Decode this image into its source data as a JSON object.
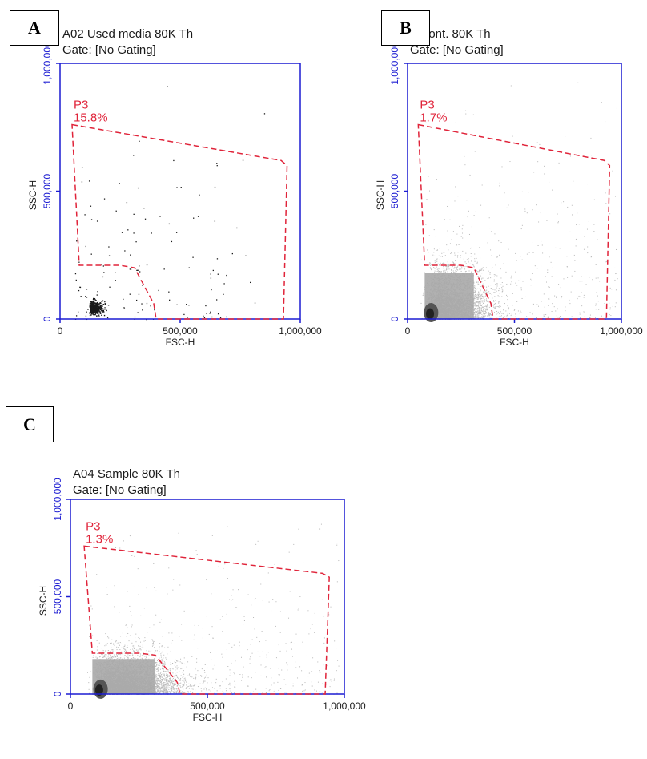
{
  "colors": {
    "axis": "#1c1cd2",
    "gate": "#e0243a",
    "dots_dark": "#1a1a1a",
    "dots_grey": "#b8b8b8",
    "text": "#1a1a1a"
  },
  "panels": {
    "A": {
      "label": "A"
    },
    "B": {
      "label": "B"
    },
    "C": {
      "label": "C"
    }
  },
  "chart_data": [
    {
      "type": "scatter",
      "panel": "A",
      "title": "A02 Used media 80K Th",
      "subtitle": "Gate: [No Gating]",
      "xlabel": "FSC-H",
      "ylabel": "SSC-H",
      "xlim": [
        0,
        1000000
      ],
      "ylim": [
        0,
        1000000
      ],
      "xticks": [
        0,
        500000,
        1000000
      ],
      "xtick_labels": [
        "0",
        "500,000",
        "1,000,000"
      ],
      "yticks": [
        0,
        500000,
        1000000
      ],
      "ytick_labels": [
        "0",
        "500,000",
        "1,000,000"
      ],
      "gate": {
        "name": "P3",
        "percent": "15.8%",
        "polygon": [
          [
            50000,
            760000
          ],
          [
            920000,
            620000
          ],
          [
            945000,
            600000
          ],
          [
            930000,
            0
          ],
          [
            400000,
            0
          ],
          [
            390000,
            60000
          ],
          [
            310000,
            200000
          ],
          [
            250000,
            210000
          ],
          [
            80000,
            210000
          ]
        ]
      },
      "density": "sparse-black",
      "cluster": {
        "x": 120000,
        "y": 40000
      }
    },
    {
      "type": "scatter",
      "panel": "B",
      "title": "3 Cont. 80K Th",
      "subtitle": "Gate: [No Gating]",
      "xlabel": "FSC-H",
      "ylabel": "SSC-H",
      "xlim": [
        0,
        1000000
      ],
      "ylim": [
        0,
        1000000
      ],
      "xticks": [
        0,
        500000,
        1000000
      ],
      "xtick_labels": [
        "0",
        "500,000",
        "1,000,000"
      ],
      "yticks": [
        0,
        500000,
        1000000
      ],
      "ytick_labels": [
        "0",
        "500,000",
        "1,000,000"
      ],
      "gate": {
        "name": "P3",
        "percent": "1.7%",
        "polygon": [
          [
            50000,
            760000
          ],
          [
            920000,
            620000
          ],
          [
            945000,
            600000
          ],
          [
            930000,
            0
          ],
          [
            400000,
            0
          ],
          [
            390000,
            60000
          ],
          [
            310000,
            200000
          ],
          [
            250000,
            210000
          ],
          [
            80000,
            210000
          ]
        ]
      },
      "density": "dense-grey",
      "cluster": {
        "x": 110000,
        "y": 40000
      }
    },
    {
      "type": "scatter",
      "panel": "C",
      "title": "A04 Sample 80K Th",
      "subtitle": "Gate: [No Gating]",
      "xlabel": "FSC-H",
      "ylabel": "SSC-H",
      "xlim": [
        0,
        1000000
      ],
      "ylim": [
        0,
        1000000
      ],
      "xticks": [
        0,
        500000,
        1000000
      ],
      "xtick_labels": [
        "0",
        "500,000",
        "1,000,000"
      ],
      "yticks": [
        0,
        500000,
        1000000
      ],
      "ytick_labels": [
        "0",
        "500,000",
        "1,000,000"
      ],
      "gate": {
        "name": "P3",
        "percent": "1.3%",
        "polygon": [
          [
            50000,
            760000
          ],
          [
            920000,
            620000
          ],
          [
            945000,
            600000
          ],
          [
            930000,
            0
          ],
          [
            400000,
            0
          ],
          [
            390000,
            60000
          ],
          [
            310000,
            200000
          ],
          [
            250000,
            210000
          ],
          [
            80000,
            210000
          ]
        ]
      },
      "density": "dense-grey",
      "cluster": {
        "x": 110000,
        "y": 40000
      }
    }
  ]
}
